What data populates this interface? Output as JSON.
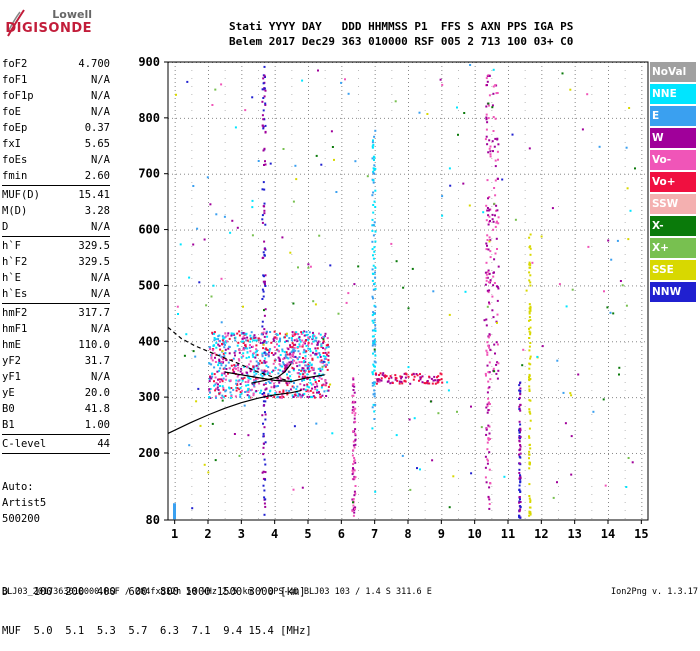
{
  "logo": {
    "line1": "Lowell",
    "line2": "DIGISONDE"
  },
  "header": {
    "row1": "Stati YYYY DAY   DDD HHMMSS P1  FFS S AXN PPS IGA PS",
    "row2": "Belem 2017 Dec29 363 010000 RSF 005 2 713 100 03+ C0"
  },
  "params": [
    {
      "label": "foF2",
      "value": "4.700"
    },
    {
      "label": "foF1",
      "value": "N/A"
    },
    {
      "label": "foF1p",
      "value": "N/A"
    },
    {
      "label": "foE",
      "value": "N/A"
    },
    {
      "label": "foEp",
      "value": "0.37"
    },
    {
      "label": "fxI",
      "value": "5.65"
    },
    {
      "label": "foEs",
      "value": "N/A"
    },
    {
      "label": "fmin",
      "value": "2.60",
      "sep": true
    },
    {
      "label": "MUF(D)",
      "value": "15.41"
    },
    {
      "label": "M(D)",
      "value": "3.28"
    },
    {
      "label": "D",
      "value": "N/A",
      "sep": true
    },
    {
      "label": "h`F",
      "value": "329.5"
    },
    {
      "label": "h`F2",
      "value": "329.5"
    },
    {
      "label": "h`E",
      "value": "N/A"
    },
    {
      "label": "h`Es",
      "value": "N/A",
      "sep": true
    },
    {
      "label": "hmF2",
      "value": "317.7"
    },
    {
      "label": "hmF1",
      "value": "N/A"
    },
    {
      "label": "hmE",
      "value": "110.0"
    },
    {
      "label": "yF2",
      "value": "31.7"
    },
    {
      "label": "yF1",
      "value": "N/A"
    },
    {
      "label": "yE",
      "value": "20.0"
    },
    {
      "label": "B0",
      "value": "41.8"
    },
    {
      "label": "B1",
      "value": "1.00",
      "sep": true
    },
    {
      "label": "C-level",
      "value": "44",
      "sep": true
    }
  ],
  "auto": {
    "line1": "Auto:",
    "line2": "Artist5",
    "line3": "500200"
  },
  "legend": [
    {
      "label": "NoVal",
      "color": "#a0a0a0"
    },
    {
      "label": "NNE",
      "color": "#00e5ff"
    },
    {
      "label": "E",
      "color": "#3aa0f0"
    },
    {
      "label": "W",
      "color": "#a0009a"
    },
    {
      "label": "Vo-",
      "color": "#f055b8"
    },
    {
      "label": "Vo+",
      "color": "#f01040"
    },
    {
      "label": "SSW",
      "color": "#f4b0b0"
    },
    {
      "label": "X-",
      "color": "#0a7a0a"
    },
    {
      "label": "X+",
      "color": "#78c050"
    },
    {
      "label": "SSE",
      "color": "#d8d800"
    },
    {
      "label": "NNW",
      "color": "#2020d0"
    }
  ],
  "chart_data": {
    "type": "scatter",
    "title": "",
    "xlabel": "",
    "ylabel": "",
    "xlim": [
      0.8,
      15.2
    ],
    "ylim": [
      80,
      900
    ],
    "x_ticks": [
      1,
      2,
      3,
      4,
      5,
      6,
      7,
      8,
      9,
      10,
      11,
      12,
      13,
      14,
      15
    ],
    "y_ticks": [
      80,
      200,
      300,
      400,
      500,
      600,
      700,
      800,
      900
    ],
    "grid": true,
    "legend_position": "right",
    "series": [
      {
        "name": "ordinary_trace_curve",
        "values": [
          [
            0.8,
            235
          ],
          [
            1.5,
            255
          ],
          [
            2.0,
            268
          ],
          [
            2.5,
            280
          ],
          [
            3.0,
            290
          ],
          [
            3.5,
            298
          ],
          [
            4.0,
            304
          ],
          [
            4.5,
            308
          ],
          [
            4.8,
            312
          ]
        ]
      },
      {
        "name": "profile_curve_dashed",
        "values": [
          [
            0.8,
            425
          ],
          [
            1.2,
            405
          ],
          [
            1.6,
            392
          ],
          [
            2.0,
            382
          ],
          [
            2.5,
            370
          ],
          [
            3.0,
            358
          ],
          [
            3.5,
            345
          ],
          [
            4.0,
            335
          ],
          [
            4.4,
            330
          ]
        ]
      },
      {
        "name": "x_trace_curve",
        "values": [
          [
            2.5,
            345
          ],
          [
            3.0,
            340
          ],
          [
            3.5,
            335
          ],
          [
            4.0,
            330
          ],
          [
            4.5,
            328
          ],
          [
            5.0,
            335
          ],
          [
            5.5,
            340
          ]
        ]
      },
      {
        "name": "x_trace_curve_2",
        "values": [
          [
            3.3,
            325
          ],
          [
            3.7,
            330
          ],
          [
            4.1,
            336
          ],
          [
            4.3,
            345
          ],
          [
            4.5,
            360
          ]
        ]
      }
    ],
    "clusters": [
      {
        "x0": 2.0,
        "x1": 5.6,
        "y0": 300,
        "y1": 420,
        "colors": [
          "#00e5ff",
          "#3aa0f0",
          "#a0009a",
          "#f01040",
          "#f055b8"
        ],
        "n": 900
      },
      {
        "x0": 3.6,
        "x1": 3.7,
        "y0": 80,
        "y1": 900,
        "colors": [
          "#2020d0",
          "#a0009a"
        ],
        "n": 120
      },
      {
        "x0": 6.9,
        "x1": 7.0,
        "y0": 260,
        "y1": 780,
        "colors": [
          "#3aa0f0",
          "#00e5ff"
        ],
        "n": 110
      },
      {
        "x0": 10.3,
        "x1": 10.45,
        "y0": 100,
        "y1": 880,
        "colors": [
          "#a0009a",
          "#f055b8"
        ],
        "n": 140
      },
      {
        "x0": 11.3,
        "x1": 11.35,
        "y0": 80,
        "y1": 330,
        "colors": [
          "#2020d0",
          "#a0009a"
        ],
        "n": 80
      },
      {
        "x0": 11.6,
        "x1": 11.65,
        "y0": 80,
        "y1": 600,
        "colors": [
          "#d8d800"
        ],
        "n": 90
      },
      {
        "x0": 6.3,
        "x1": 6.4,
        "y0": 80,
        "y1": 340,
        "colors": [
          "#a0009a",
          "#f055b8"
        ],
        "n": 80
      },
      {
        "x0": 7.0,
        "x1": 9.0,
        "y0": 325,
        "y1": 345,
        "colors": [
          "#a0009a",
          "#f01040"
        ],
        "n": 90
      },
      {
        "x0": 10.5,
        "x1": 10.7,
        "y0": 330,
        "y1": 880,
        "colors": [
          "#f055b8",
          "#a0009a"
        ],
        "n": 70
      },
      {
        "x0": 1.0,
        "x1": 14.8,
        "y0": 100,
        "y1": 900,
        "colors": [
          "#3aa0f0",
          "#a0009a",
          "#00e5ff",
          "#f055b8",
          "#2020d0",
          "#d8d800",
          "#0a7a0a",
          "#78c050"
        ],
        "n": 220
      }
    ]
  },
  "distance_table": {
    "row1": "D    100  200  400  600  800 1000 1500 3000 [km]",
    "row2": "MUF  5.0  5.1  5.3  5.7  6.3  7.1  9.4 15.4 [MHz]"
  },
  "footer": {
    "left": "BLJ03_2017363010000.RSF / 284fx512h 50 kHz 2.5 km / DPS-4D BLJ03 103 / 1.4 S 311.6 E",
    "right": "Ion2Png v. 1.3.17"
  }
}
